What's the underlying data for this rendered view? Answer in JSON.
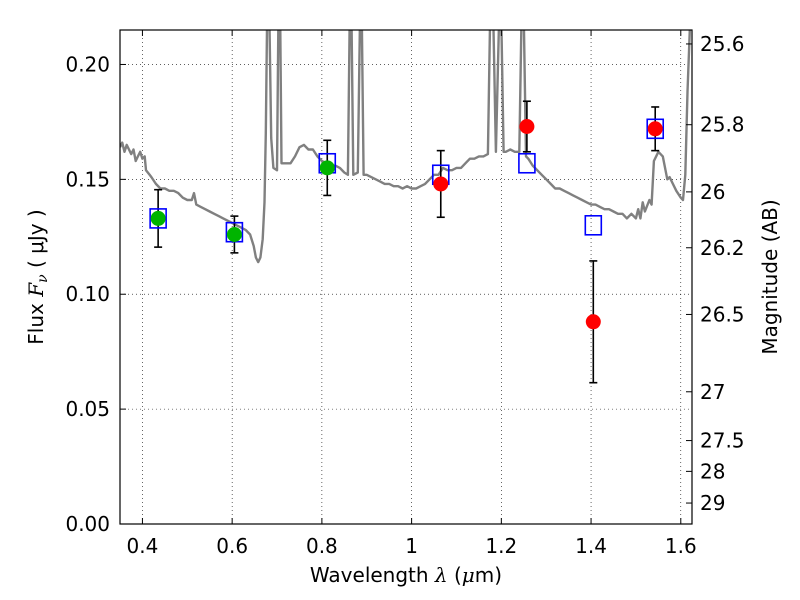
{
  "chart_data": {
    "type": "scatter",
    "xlabel": {
      "prefix": "Wavelength ",
      "symbol": "λ",
      "unit_open": " (",
      "unit_symbol": "μ",
      "unit_rest": "m)"
    },
    "ylabel": {
      "prefix": "Flux ",
      "symbol": "F",
      "subscript": "ν",
      "unit": " ( μJy )"
    },
    "y2label": "Magnitude (AB)",
    "xlim": [
      0.35,
      1.625
    ],
    "ylim": [
      0.0,
      0.215
    ],
    "x_ticks": [
      "0.4",
      "0.6",
      "0.8",
      "1",
      "1.2",
      "1.4",
      "1.6"
    ],
    "x_tick_values": [
      0.4,
      0.6,
      0.8,
      1.0,
      1.2,
      1.4,
      1.6
    ],
    "y_ticks": [
      "0.00",
      "0.05",
      "0.10",
      "0.15",
      "0.20"
    ],
    "y_tick_values": [
      0.0,
      0.05,
      0.1,
      0.15,
      0.2
    ],
    "y2_ticks": [
      "25.6",
      "25.8",
      "26",
      "26.2",
      "26.5",
      "27",
      "27.5",
      "28",
      "29"
    ],
    "y2_tick_values": [
      25.6,
      25.8,
      26.0,
      26.2,
      26.5,
      27.0,
      27.5,
      28.0,
      29.0
    ],
    "grid": true,
    "model_spectrum": {
      "color": "#808080",
      "points": [
        [
          0.35,
          0.164
        ],
        [
          0.355,
          0.166
        ],
        [
          0.36,
          0.162
        ],
        [
          0.365,
          0.165
        ],
        [
          0.37,
          0.163
        ],
        [
          0.375,
          0.161
        ],
        [
          0.38,
          0.163
        ],
        [
          0.385,
          0.158
        ],
        [
          0.39,
          0.16
        ],
        [
          0.395,
          0.162
        ],
        [
          0.4,
          0.159
        ],
        [
          0.405,
          0.16
        ],
        [
          0.408,
          0.154
        ],
        [
          0.412,
          0.153
        ],
        [
          0.416,
          0.152
        ],
        [
          0.42,
          0.151
        ],
        [
          0.43,
          0.148
        ],
        [
          0.44,
          0.146
        ],
        [
          0.45,
          0.146
        ],
        [
          0.46,
          0.145
        ],
        [
          0.47,
          0.145
        ],
        [
          0.48,
          0.144
        ],
        [
          0.49,
          0.142
        ],
        [
          0.5,
          0.141
        ],
        [
          0.51,
          0.141
        ],
        [
          0.515,
          0.144
        ],
        [
          0.52,
          0.139
        ],
        [
          0.53,
          0.138
        ],
        [
          0.54,
          0.137
        ],
        [
          0.55,
          0.136
        ],
        [
          0.56,
          0.135
        ],
        [
          0.57,
          0.134
        ],
        [
          0.58,
          0.133
        ],
        [
          0.59,
          0.132
        ],
        [
          0.6,
          0.131
        ],
        [
          0.61,
          0.13
        ],
        [
          0.62,
          0.129
        ],
        [
          0.63,
          0.128
        ],
        [
          0.64,
          0.126
        ],
        [
          0.648,
          0.121
        ],
        [
          0.653,
          0.116
        ],
        [
          0.658,
          0.114
        ],
        [
          0.663,
          0.116
        ],
        [
          0.668,
          0.124
        ],
        [
          0.672,
          0.14
        ],
        [
          0.675,
          0.17
        ],
        [
          0.678,
          0.22
        ],
        [
          0.683,
          0.22
        ],
        [
          0.687,
          0.168
        ],
        [
          0.692,
          0.155
        ],
        [
          0.7,
          0.154
        ],
        [
          0.703,
          0.22
        ],
        [
          0.707,
          0.22
        ],
        [
          0.71,
          0.157
        ],
        [
          0.72,
          0.157
        ],
        [
          0.73,
          0.157
        ],
        [
          0.74,
          0.16
        ],
        [
          0.75,
          0.164
        ],
        [
          0.76,
          0.165
        ],
        [
          0.77,
          0.163
        ],
        [
          0.78,
          0.163
        ],
        [
          0.79,
          0.16
        ],
        [
          0.8,
          0.158
        ],
        [
          0.81,
          0.157
        ],
        [
          0.82,
          0.156
        ],
        [
          0.83,
          0.156
        ],
        [
          0.84,
          0.155
        ],
        [
          0.85,
          0.153
        ],
        [
          0.858,
          0.152
        ],
        [
          0.862,
          0.22
        ],
        [
          0.866,
          0.22
        ],
        [
          0.87,
          0.152
        ],
        [
          0.88,
          0.153
        ],
        [
          0.885,
          0.22
        ],
        [
          0.889,
          0.22
        ],
        [
          0.893,
          0.152
        ],
        [
          0.9,
          0.152
        ],
        [
          0.91,
          0.151
        ],
        [
          0.92,
          0.15
        ],
        [
          0.93,
          0.149
        ],
        [
          0.94,
          0.148
        ],
        [
          0.95,
          0.148
        ],
        [
          0.96,
          0.147
        ],
        [
          0.97,
          0.147
        ],
        [
          0.98,
          0.146
        ],
        [
          0.99,
          0.147
        ],
        [
          1.0,
          0.146
        ],
        [
          1.01,
          0.146
        ],
        [
          1.02,
          0.147
        ],
        [
          1.03,
          0.148
        ],
        [
          1.04,
          0.15
        ],
        [
          1.05,
          0.152
        ],
        [
          1.06,
          0.152
        ],
        [
          1.07,
          0.155
        ],
        [
          1.08,
          0.154
        ],
        [
          1.09,
          0.154
        ],
        [
          1.1,
          0.155
        ],
        [
          1.11,
          0.155
        ],
        [
          1.12,
          0.157
        ],
        [
          1.13,
          0.159
        ],
        [
          1.14,
          0.159
        ],
        [
          1.15,
          0.16
        ],
        [
          1.16,
          0.16
        ],
        [
          1.17,
          0.161
        ],
        [
          1.175,
          0.22
        ],
        [
          1.182,
          0.22
        ],
        [
          1.188,
          0.162
        ],
        [
          1.195,
          0.22
        ],
        [
          1.2,
          0.22
        ],
        [
          1.205,
          0.162
        ],
        [
          1.21,
          0.162
        ],
        [
          1.22,
          0.163
        ],
        [
          1.23,
          0.162
        ],
        [
          1.24,
          0.162
        ],
        [
          1.245,
          0.22
        ],
        [
          1.25,
          0.22
        ],
        [
          1.255,
          0.16
        ],
        [
          1.26,
          0.159
        ],
        [
          1.27,
          0.156
        ],
        [
          1.28,
          0.154
        ],
        [
          1.29,
          0.152
        ],
        [
          1.3,
          0.15
        ],
        [
          1.31,
          0.148
        ],
        [
          1.32,
          0.146
        ],
        [
          1.33,
          0.146
        ],
        [
          1.34,
          0.145
        ],
        [
          1.35,
          0.144
        ],
        [
          1.36,
          0.143
        ],
        [
          1.37,
          0.142
        ],
        [
          1.38,
          0.141
        ],
        [
          1.39,
          0.14
        ],
        [
          1.4,
          0.139
        ],
        [
          1.41,
          0.139
        ],
        [
          1.42,
          0.138
        ],
        [
          1.43,
          0.137
        ],
        [
          1.44,
          0.137
        ],
        [
          1.45,
          0.136
        ],
        [
          1.46,
          0.135
        ],
        [
          1.47,
          0.135
        ],
        [
          1.48,
          0.133
        ],
        [
          1.49,
          0.135
        ],
        [
          1.5,
          0.133
        ],
        [
          1.505,
          0.137
        ],
        [
          1.51,
          0.133
        ],
        [
          1.515,
          0.14
        ],
        [
          1.52,
          0.136
        ],
        [
          1.53,
          0.141
        ],
        [
          1.535,
          0.139
        ],
        [
          1.54,
          0.158
        ],
        [
          1.55,
          0.162
        ],
        [
          1.56,
          0.16
        ],
        [
          1.57,
          0.15
        ],
        [
          1.575,
          0.151
        ],
        [
          1.58,
          0.149
        ],
        [
          1.59,
          0.145
        ],
        [
          1.6,
          0.142
        ],
        [
          1.605,
          0.141
        ],
        [
          1.61,
          0.152
        ],
        [
          1.615,
          0.188
        ],
        [
          1.62,
          0.215
        ],
        [
          1.625,
          0.22
        ]
      ]
    },
    "model_photometry": {
      "marker": "open-square",
      "color": "#0000ff",
      "points": [
        [
          0.435,
          0.133
        ],
        [
          0.605,
          0.127
        ],
        [
          0.812,
          0.157
        ],
        [
          1.065,
          0.152
        ],
        [
          1.257,
          0.157
        ],
        [
          1.405,
          0.13
        ],
        [
          1.543,
          0.172
        ]
      ]
    },
    "observed_green": {
      "marker": "filled-circle",
      "color": "#00b400",
      "points": [
        {
          "x": 0.435,
          "y": 0.133,
          "err_low": 0.0125,
          "err_high": 0.0125
        },
        {
          "x": 0.605,
          "y": 0.126,
          "err_low": 0.008,
          "err_high": 0.008
        },
        {
          "x": 0.812,
          "y": 0.155,
          "err_low": 0.012,
          "err_high": 0.012
        }
      ]
    },
    "observed_red": {
      "marker": "filled-circle",
      "color": "#ff0000",
      "points": [
        {
          "x": 1.065,
          "y": 0.148,
          "err_low": 0.0145,
          "err_high": 0.0145
        },
        {
          "x": 1.257,
          "y": 0.173,
          "err_low": 0.011,
          "err_high": 0.011
        },
        {
          "x": 1.405,
          "y": 0.088,
          "err_low": 0.0265,
          "err_high": 0.0265
        },
        {
          "x": 1.543,
          "y": 0.172,
          "err_low": 0.0095,
          "err_high": 0.0095
        }
      ]
    }
  }
}
